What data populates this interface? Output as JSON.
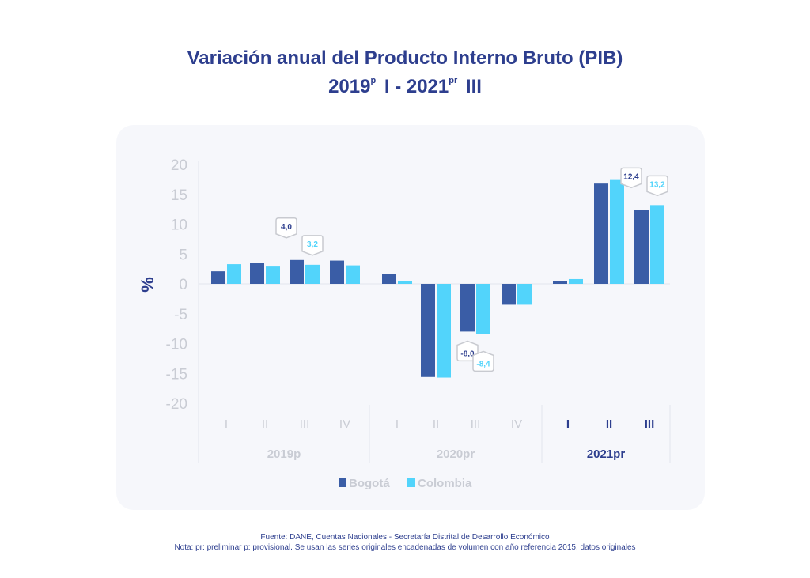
{
  "title": {
    "line1": "Variación anual del Producto Interno Bruto (PIB)",
    "line2_part1": "2019",
    "line2_sup1": "p",
    "line2_part2": " I - 2021",
    "line2_sup2": "pr",
    "line2_part3": " III"
  },
  "colors": {
    "bogota": "#3a5da6",
    "colombia": "#52d4fb",
    "title": "#2d3e8e",
    "axis_text": "#c9ccd4",
    "active_text": "#2d3e8e"
  },
  "chart_data": {
    "type": "bar",
    "title": "Variación anual del Producto Interno Bruto (PIB) 2019p I - 2021pr III",
    "xlabel": "",
    "ylabel": "%",
    "ylim": [
      -20,
      20
    ],
    "yticks": [
      20,
      15,
      10,
      5,
      0,
      -5,
      -10,
      -15,
      -20
    ],
    "grid": false,
    "legend_position": "bottom",
    "categories": [
      "I",
      "II",
      "III",
      "IV",
      "I",
      "II",
      "III",
      "IV",
      "I",
      "II",
      "III"
    ],
    "groups": [
      {
        "label": "2019p",
        "quarters": [
          "I",
          "II",
          "III",
          "IV"
        ],
        "highlight": false
      },
      {
        "label": "2020pr",
        "quarters": [
          "I",
          "II",
          "III",
          "IV"
        ],
        "highlight": false
      },
      {
        "label": "2021pr",
        "quarters": [
          "I",
          "II",
          "III"
        ],
        "highlight": true
      }
    ],
    "series": [
      {
        "name": "Bogotá",
        "values": [
          2.1,
          3.5,
          4.0,
          3.9,
          1.7,
          -15.6,
          -8.0,
          -3.5,
          0.4,
          16.8,
          12.4
        ]
      },
      {
        "name": "Colombia",
        "values": [
          3.3,
          2.9,
          3.2,
          3.1,
          0.5,
          -15.7,
          -8.4,
          -3.5,
          0.8,
          17.4,
          13.2
        ]
      }
    ],
    "annotations": [
      {
        "series": "Bogotá",
        "index": 2,
        "text": "4,0"
      },
      {
        "series": "Colombia",
        "index": 2,
        "text": "3,2"
      },
      {
        "series": "Bogotá",
        "index": 6,
        "text": "-8,0"
      },
      {
        "series": "Colombia",
        "index": 6,
        "text": "-8,4"
      },
      {
        "series": "Bogotá",
        "index": 10,
        "text": "12,4"
      },
      {
        "series": "Colombia",
        "index": 10,
        "text": "13,2"
      }
    ]
  },
  "footer": {
    "source": "Fuente: DANE, Cuentas Nacionales - Secretaría Distrital de Desarrollo Económico",
    "note": "Nota: pr: preliminar  p: provisional. Se usan las series originales encadenadas de volumen con año referencia 2015, datos originales"
  }
}
